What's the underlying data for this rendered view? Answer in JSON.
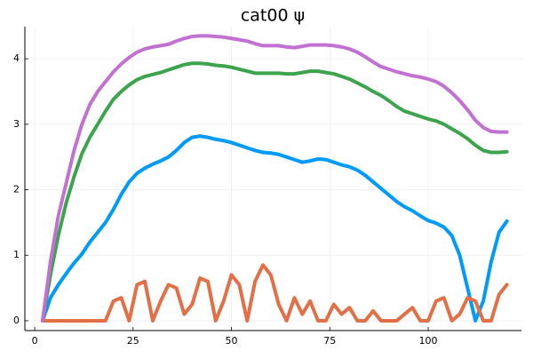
{
  "chart_data": {
    "type": "line",
    "title": "cat00 ψ",
    "x": [
      2,
      4,
      6,
      8,
      10,
      12,
      14,
      16,
      18,
      20,
      22,
      24,
      26,
      28,
      30,
      32,
      34,
      36,
      38,
      40,
      42,
      44,
      46,
      48,
      50,
      52,
      54,
      56,
      58,
      60,
      62,
      64,
      66,
      68,
      70,
      72,
      74,
      76,
      78,
      80,
      82,
      84,
      86,
      88,
      90,
      92,
      94,
      96,
      98,
      100,
      102,
      104,
      106,
      108,
      110,
      112,
      114,
      116,
      118,
      120
    ],
    "series": [
      {
        "color": "#009af9",
        "values": [
          0,
          0.35,
          0.55,
          0.72,
          0.88,
          1.02,
          1.2,
          1.35,
          1.5,
          1.7,
          1.93,
          2.12,
          2.25,
          2.33,
          2.39,
          2.44,
          2.5,
          2.6,
          2.72,
          2.8,
          2.82,
          2.8,
          2.77,
          2.75,
          2.72,
          2.68,
          2.64,
          2.6,
          2.57,
          2.56,
          2.54,
          2.5,
          2.46,
          2.42,
          2.44,
          2.47,
          2.46,
          2.42,
          2.38,
          2.35,
          2.3,
          2.22,
          2.12,
          2.02,
          1.92,
          1.82,
          1.74,
          1.68,
          1.6,
          1.53,
          1.49,
          1.43,
          1.3,
          1.0,
          0.5,
          0,
          0.3,
          0.9,
          1.35,
          1.52
        ]
      },
      {
        "color": "#e26f46",
        "values": [
          0,
          0,
          0,
          0,
          0,
          0,
          0,
          0,
          0,
          0.3,
          0.35,
          0,
          0.55,
          0.6,
          0,
          0.3,
          0.55,
          0.5,
          0.1,
          0.25,
          0.65,
          0.6,
          0,
          0.3,
          0.7,
          0.55,
          0,
          0.6,
          0.85,
          0.7,
          0.25,
          0,
          0.35,
          0.1,
          0.3,
          0,
          0,
          0.25,
          0.1,
          0.2,
          0,
          0,
          0.15,
          0,
          0,
          0,
          0.1,
          0.2,
          0,
          0,
          0.3,
          0.35,
          0,
          0.1,
          0.35,
          0.3,
          0,
          0,
          0.4,
          0.55
        ]
      },
      {
        "color": "#3da44d",
        "values": [
          0,
          0.7,
          1.3,
          1.8,
          2.2,
          2.55,
          2.8,
          3.0,
          3.2,
          3.38,
          3.5,
          3.6,
          3.68,
          3.73,
          3.76,
          3.79,
          3.83,
          3.87,
          3.91,
          3.93,
          3.93,
          3.92,
          3.9,
          3.89,
          3.87,
          3.84,
          3.81,
          3.78,
          3.78,
          3.78,
          3.78,
          3.77,
          3.77,
          3.79,
          3.81,
          3.81,
          3.79,
          3.77,
          3.73,
          3.69,
          3.63,
          3.57,
          3.5,
          3.44,
          3.36,
          3.27,
          3.2,
          3.16,
          3.12,
          3.08,
          3.05,
          3.0,
          2.93,
          2.86,
          2.78,
          2.68,
          2.6,
          2.57,
          2.57,
          2.58
        ]
      },
      {
        "color": "#c271d2",
        "values": [
          0,
          0.9,
          1.6,
          2.1,
          2.6,
          3.0,
          3.3,
          3.5,
          3.65,
          3.8,
          3.92,
          4.02,
          4.1,
          4.15,
          4.18,
          4.2,
          4.22,
          4.27,
          4.31,
          4.34,
          4.35,
          4.35,
          4.34,
          4.33,
          4.31,
          4.29,
          4.27,
          4.23,
          4.2,
          4.2,
          4.2,
          4.18,
          4.17,
          4.19,
          4.21,
          4.21,
          4.21,
          4.2,
          4.18,
          4.15,
          4.1,
          4.03,
          3.95,
          3.88,
          3.84,
          3.8,
          3.77,
          3.74,
          3.72,
          3.69,
          3.65,
          3.58,
          3.48,
          3.36,
          3.22,
          3.06,
          2.95,
          2.89,
          2.88,
          2.88
        ]
      }
    ],
    "xlim": [
      -2.5,
      123.7
    ],
    "ylim": [
      -0.15,
      4.49
    ],
    "xticks": [
      0,
      25,
      50,
      75,
      100
    ],
    "yticks": [
      0,
      1,
      2,
      3,
      4
    ],
    "grid": true
  }
}
